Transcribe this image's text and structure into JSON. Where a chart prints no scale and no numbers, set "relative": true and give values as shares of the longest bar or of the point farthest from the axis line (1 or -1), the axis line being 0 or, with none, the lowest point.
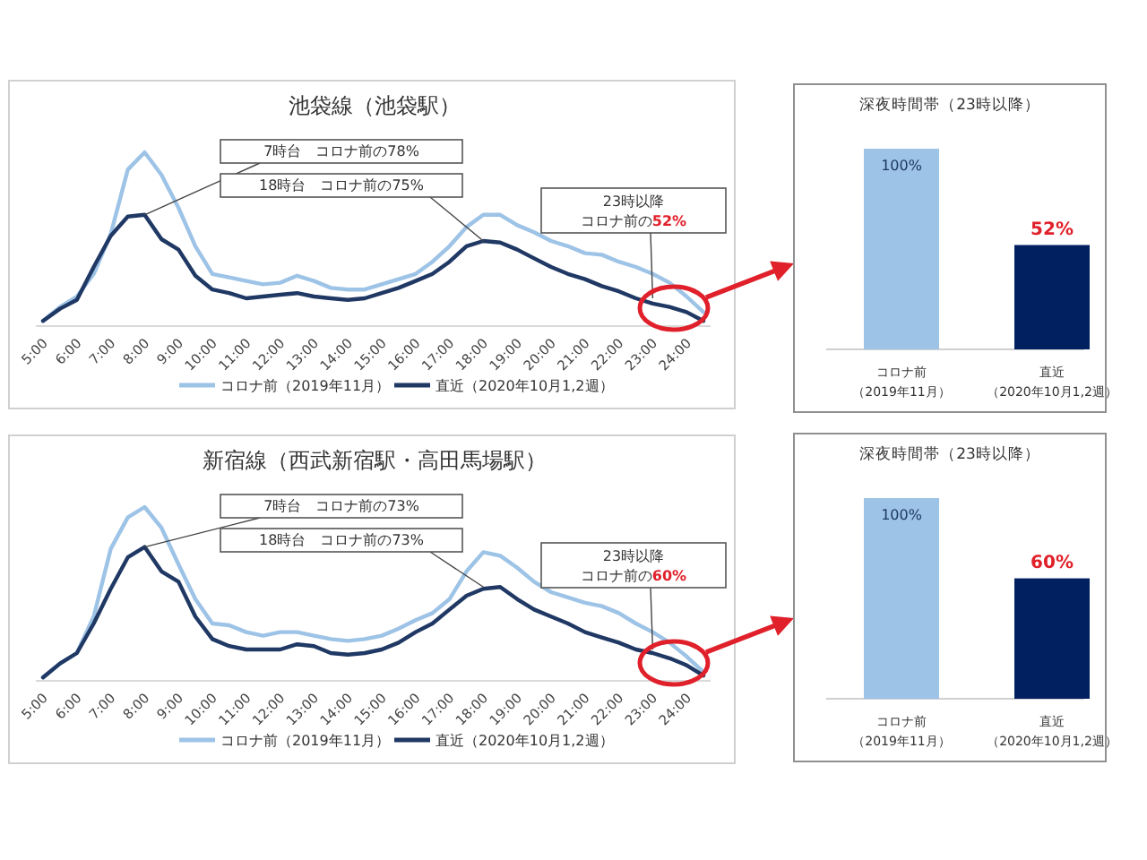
{
  "chart_data": [
    {
      "type": "line",
      "title": "池袋線（池袋駅）",
      "relative": true,
      "legend": "bottom",
      "categories": [
        "5:00",
        null,
        "6:00",
        null,
        "7:00",
        null,
        "8:00",
        null,
        "9:00",
        null,
        "10:00",
        null,
        "11:00",
        null,
        "12:00",
        null,
        "13:00",
        null,
        "14:00",
        null,
        "15:00",
        null,
        "16:00",
        null,
        "17:00",
        null,
        "18:00",
        null,
        "19:00",
        null,
        "20:00",
        null,
        "21:00",
        null,
        "22:00",
        null,
        "23:00",
        null,
        "24:00",
        null
      ],
      "series": [
        {
          "name": "コロナ前（2019年11月）",
          "color": "#9dc3e6",
          "values": [
            0.03,
            0.11,
            0.17,
            0.3,
            0.53,
            0.9,
            1.0,
            0.87,
            0.68,
            0.46,
            0.3,
            0.28,
            0.26,
            0.24,
            0.25,
            0.29,
            0.26,
            0.22,
            0.21,
            0.21,
            0.24,
            0.27,
            0.3,
            0.37,
            0.46,
            0.57,
            0.64,
            0.64,
            0.58,
            0.54,
            0.49,
            0.46,
            0.42,
            0.41,
            0.37,
            0.34,
            0.3,
            0.25,
            0.17,
            0.08
          ]
        },
        {
          "name": "直近（2020年10月1,2週）",
          "color": "#1f3864",
          "values": [
            0.03,
            0.1,
            0.15,
            0.34,
            0.52,
            0.63,
            0.64,
            0.5,
            0.44,
            0.29,
            0.21,
            0.19,
            0.16,
            0.17,
            0.18,
            0.19,
            0.17,
            0.16,
            0.15,
            0.16,
            0.19,
            0.22,
            0.26,
            0.3,
            0.37,
            0.46,
            0.49,
            0.48,
            0.44,
            0.39,
            0.34,
            0.3,
            0.27,
            0.23,
            0.2,
            0.16,
            0.13,
            0.11,
            0.08,
            0.03
          ]
        }
      ],
      "annotations": [
        {
          "text": "7時台　コロナ前の78%",
          "x": "8:00",
          "y": 0.64
        },
        {
          "text": "18時台　コロナ前の75%",
          "x": "18:00",
          "y": 0.49
        },
        "23時以降",
        {
          "text": "コロナ前の52%",
          "x": "23:00",
          "y": 0.16
        }
      ]
    },
    {
      "type": "bar",
      "title": "深夜時間帯（23時以降）",
      "categories": [
        "コロナ前（2019年11月）",
        "直近（2020年10月1,2週）"
      ],
      "values": [
        100,
        52
      ],
      "colors": [
        "#9dc3e6",
        "#002060"
      ],
      "value_labels": [
        "100%",
        "52%"
      ]
    },
    {
      "type": "line",
      "title": "新宿線（西武新宿駅・高田馬場駅）",
      "relative": true,
      "legend": "bottom",
      "categories": [
        "5:00",
        null,
        "6:00",
        null,
        "7:00",
        null,
        "8:00",
        null,
        "9:00",
        null,
        "10:00",
        null,
        "11:00",
        null,
        "12:00",
        null,
        "13:00",
        null,
        "14:00",
        null,
        "15:00",
        null,
        "16:00",
        null,
        "17:00",
        null,
        "18:00",
        null,
        "19:00",
        null,
        "20:00",
        null,
        "21:00",
        null,
        "22:00",
        null,
        "23:00",
        null,
        "24:00",
        null
      ],
      "series": [
        {
          "name": "コロナ前（2019年11月）",
          "color": "#9dc3e6",
          "values": [
            0.02,
            0.1,
            0.16,
            0.37,
            0.76,
            0.94,
            1.0,
            0.88,
            0.67,
            0.47,
            0.33,
            0.32,
            0.28,
            0.26,
            0.28,
            0.28,
            0.26,
            0.24,
            0.23,
            0.24,
            0.26,
            0.3,
            0.35,
            0.39,
            0.47,
            0.63,
            0.74,
            0.72,
            0.65,
            0.57,
            0.51,
            0.48,
            0.45,
            0.43,
            0.39,
            0.33,
            0.28,
            0.22,
            0.14,
            0.05
          ]
        },
        {
          "name": "直近（2020年10月1,2週）",
          "color": "#1f3864",
          "values": [
            0.02,
            0.1,
            0.16,
            0.33,
            0.53,
            0.71,
            0.77,
            0.63,
            0.57,
            0.37,
            0.24,
            0.2,
            0.18,
            0.18,
            0.18,
            0.21,
            0.2,
            0.16,
            0.15,
            0.16,
            0.18,
            0.22,
            0.28,
            0.33,
            0.41,
            0.49,
            0.53,
            0.54,
            0.47,
            0.41,
            0.37,
            0.33,
            0.28,
            0.25,
            0.22,
            0.18,
            0.16,
            0.13,
            0.09,
            0.03
          ]
        }
      ],
      "annotations": [
        {
          "text": "7時台　コロナ前の73%",
          "x": "8:00",
          "y": 0.77
        },
        {
          "text": "18時台　コロナ前の73%",
          "x": "18:00",
          "y": 0.54
        },
        "23時以降",
        {
          "text": "コロナ前の60%",
          "x": "23:00",
          "y": 0.18
        }
      ]
    },
    {
      "type": "bar",
      "title": "深夜時間帯（23時以降）",
      "categories": [
        "コロナ前（2019年11月）",
        "直近（2020年10月1,2週）"
      ],
      "values": [
        100,
        60
      ],
      "colors": [
        "#9dc3e6",
        "#002060"
      ],
      "value_labels": [
        "100%",
        "60%"
      ]
    }
  ]
}
